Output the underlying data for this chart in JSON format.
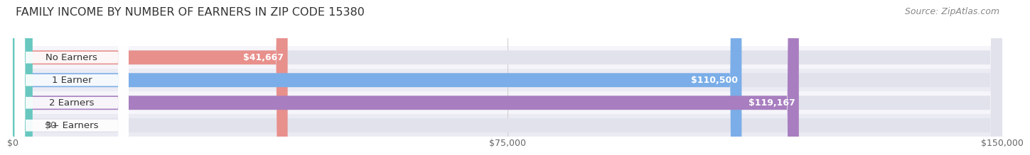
{
  "title": "FAMILY INCOME BY NUMBER OF EARNERS IN ZIP CODE 15380",
  "source": "Source: ZipAtlas.com",
  "categories": [
    "No Earners",
    "1 Earner",
    "2 Earners",
    "3+ Earners"
  ],
  "values": [
    41667,
    110500,
    119167,
    0
  ],
  "bar_colors": [
    "#e8908c",
    "#7baee8",
    "#a87ec0",
    "#68c8c0"
  ],
  "track_color": "#e2e2ec",
  "row_bg_colors": [
    "#f5f5fa",
    "#ebebf4"
  ],
  "xlim": [
    0,
    150000
  ],
  "xticks": [
    0,
    75000,
    150000
  ],
  "xticklabels": [
    "$0",
    "$75,000",
    "$150,000"
  ],
  "value_labels": [
    "$41,667",
    "$110,500",
    "$119,167",
    "$0"
  ],
  "title_fontsize": 11.5,
  "source_fontsize": 9,
  "label_fontsize": 9.5,
  "value_fontsize": 9,
  "tick_fontsize": 9,
  "background_color": "#ffffff",
  "grid_color": "#cccccc",
  "zero_stub": 3000
}
